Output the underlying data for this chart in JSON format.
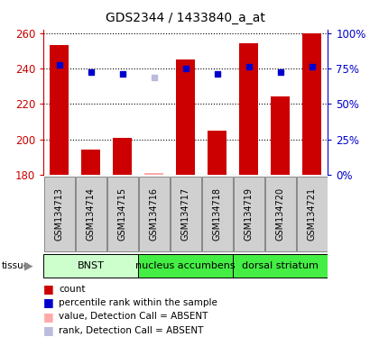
{
  "title": "GDS2344 / 1433840_a_at",
  "samples": [
    "GSM134713",
    "GSM134714",
    "GSM134715",
    "GSM134716",
    "GSM134717",
    "GSM134718",
    "GSM134719",
    "GSM134720",
    "GSM134721"
  ],
  "bar_bottom": 180,
  "ylim": [
    180,
    262
  ],
  "yticks_left": [
    180,
    200,
    220,
    240,
    260
  ],
  "ytick_left_labels": [
    "180",
    "200",
    "220",
    "240",
    "260"
  ],
  "yticks_right_vals": [
    180,
    200,
    220,
    240,
    260
  ],
  "ytick_right_labels": [
    "0%",
    "25%",
    "50%",
    "75%",
    "100%"
  ],
  "counts": [
    253,
    194,
    201,
    181,
    245,
    205,
    254,
    224,
    260
  ],
  "absent_mask": [
    false,
    false,
    false,
    true,
    false,
    false,
    false,
    false,
    false
  ],
  "percentile_ranks_val": [
    242,
    238,
    237,
    235,
    240,
    237,
    241,
    238,
    241
  ],
  "bar_color_present": "#cc0000",
  "bar_color_absent": "#ffaaaa",
  "rank_color_present": "#0000cc",
  "rank_color_absent": "#bbbbdd",
  "tissue_info": [
    {
      "label": "BNST",
      "start": 0,
      "end": 3,
      "color": "#ccffcc"
    },
    {
      "label": "nucleus accumbens",
      "start": 3,
      "end": 6,
      "color": "#44ee44"
    },
    {
      "label": "dorsal striatum",
      "start": 6,
      "end": 9,
      "color": "#44ee44"
    }
  ],
  "sample_box_color": "#d0d0d0",
  "sample_box_edge": "#888888",
  "label_color_left": "#cc0000",
  "label_color_right": "#0000cc",
  "legend_items": [
    {
      "color": "#cc0000",
      "label": "count"
    },
    {
      "color": "#0000cc",
      "label": "percentile rank within the sample"
    },
    {
      "color": "#ffaaaa",
      "label": "value, Detection Call = ABSENT"
    },
    {
      "color": "#bbbbdd",
      "label": "rank, Detection Call = ABSENT"
    }
  ],
  "bar_width": 0.6,
  "marker_size": 5
}
